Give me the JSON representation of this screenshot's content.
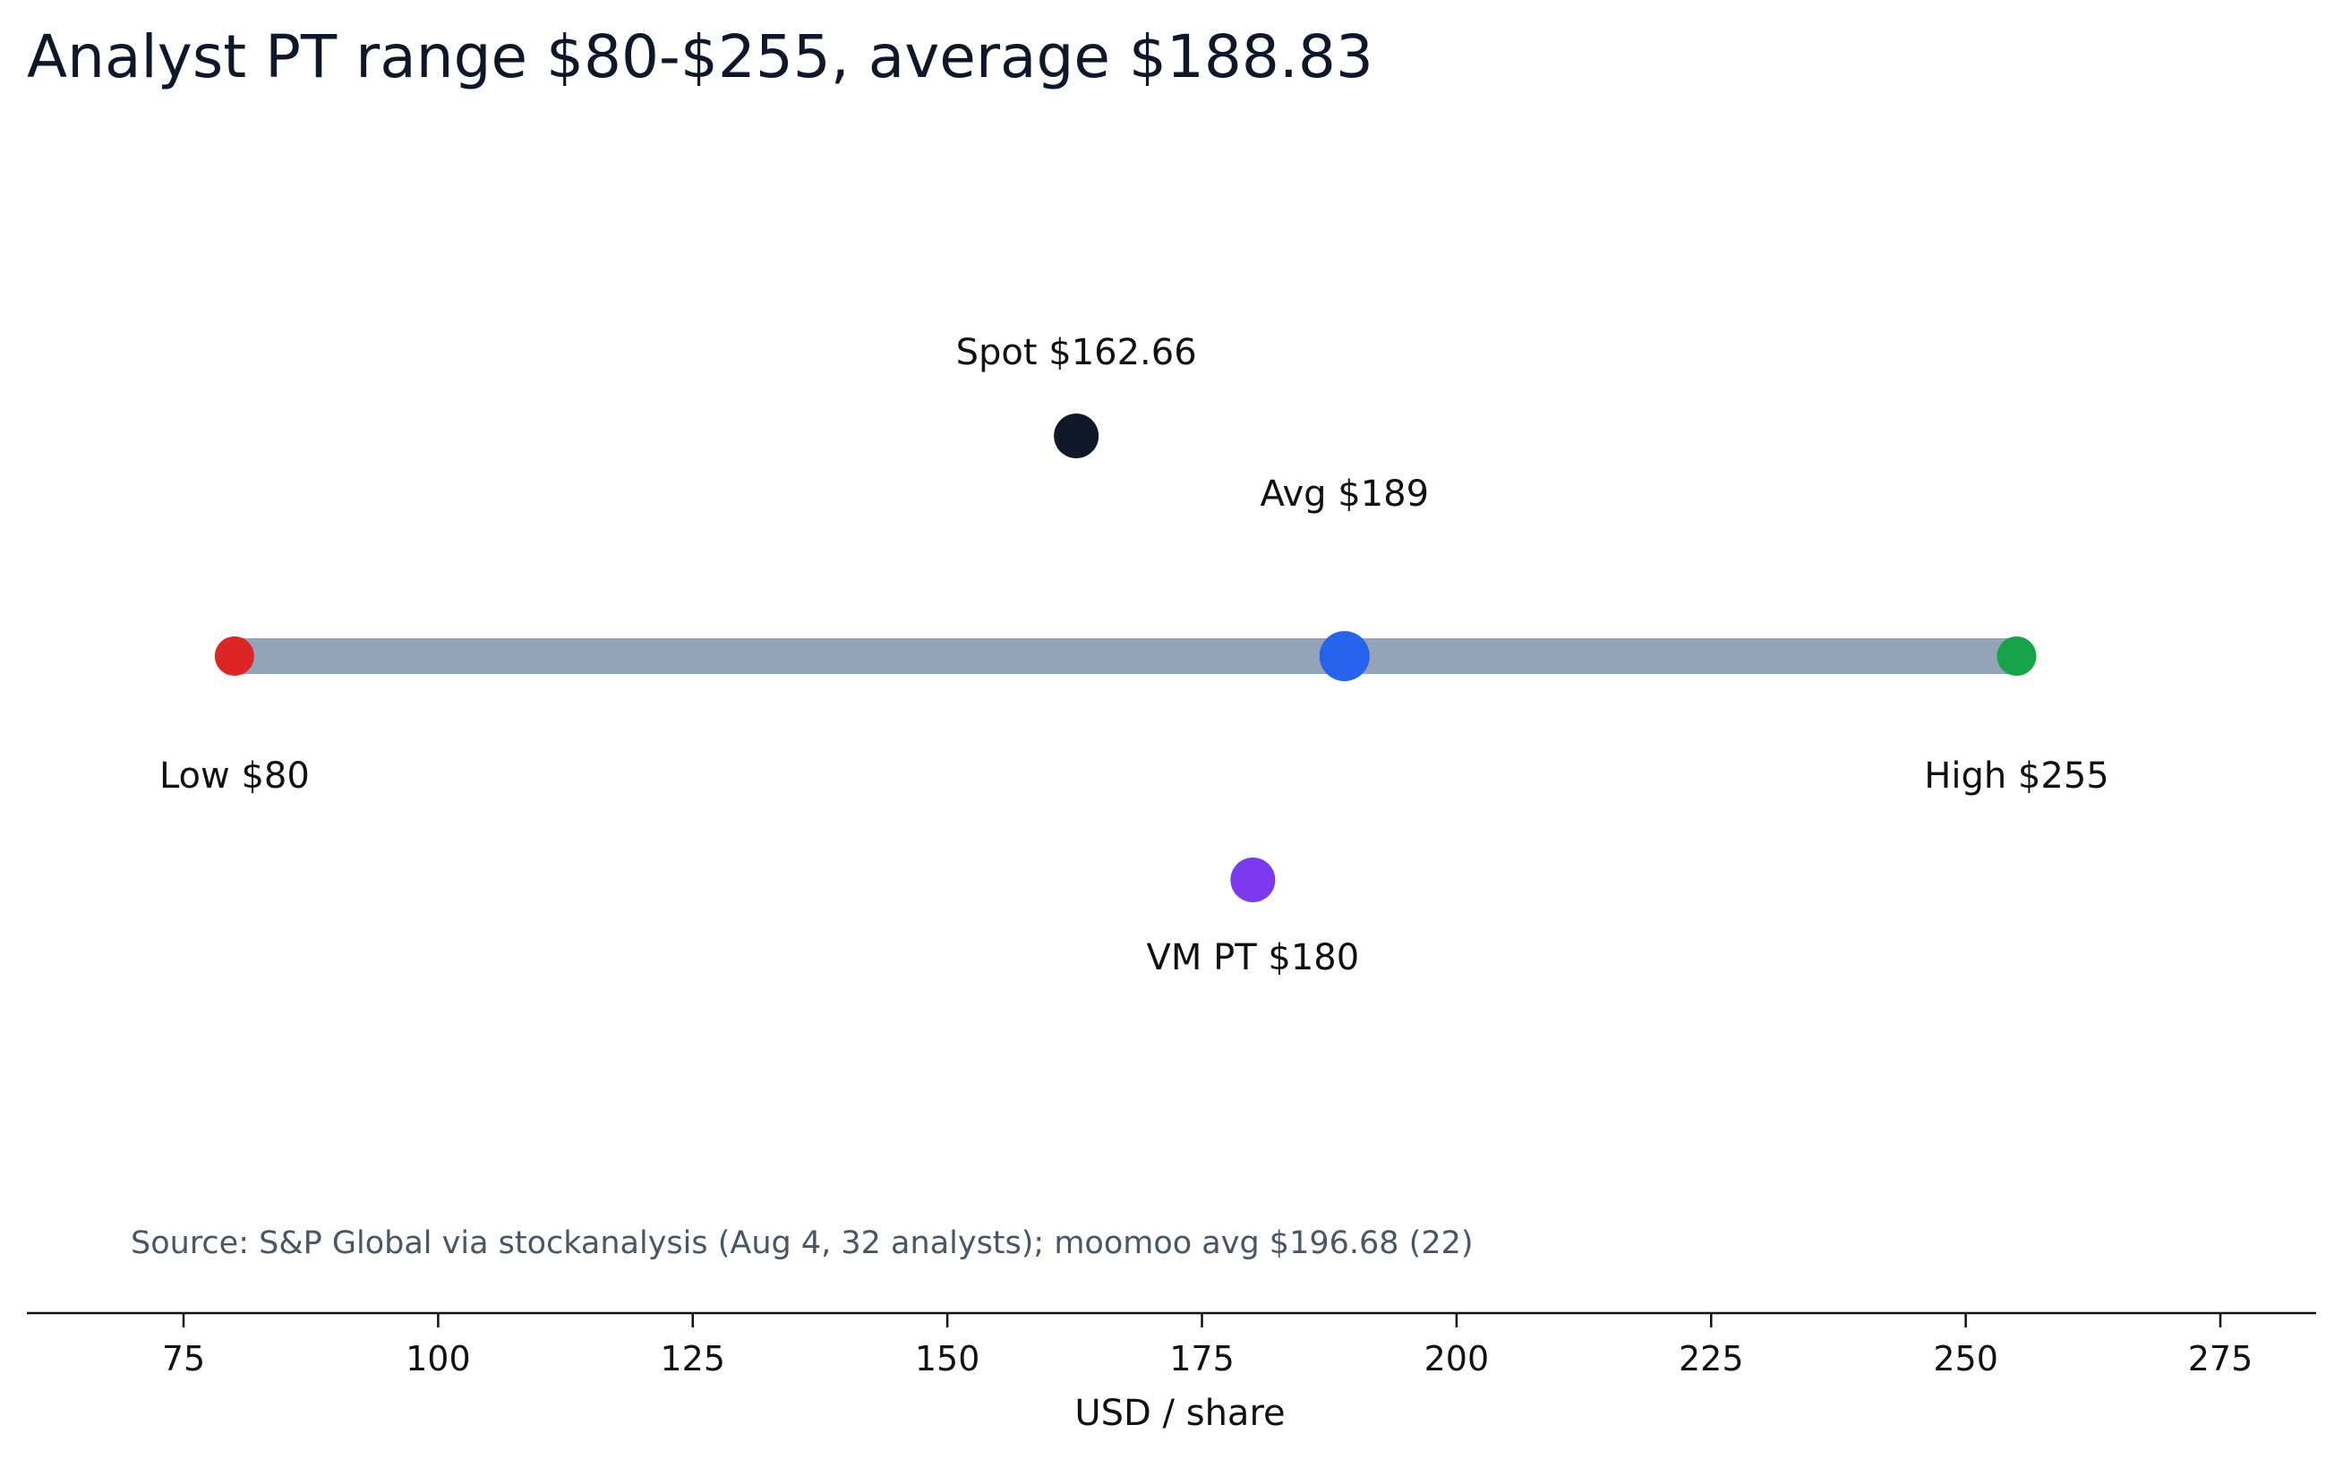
{
  "chart_data": {
    "type": "scatter",
    "title": "Analyst PT range $80-$255, average $188.83",
    "xlabel": "USD / share",
    "ylabel": "",
    "xlim": [
      60,
      280
    ],
    "xticks": [
      75,
      100,
      125,
      150,
      175,
      200,
      225,
      250,
      275
    ],
    "grid": false,
    "legend": "none",
    "range": {
      "low": 80,
      "high": 255,
      "color": "#94a3b8"
    },
    "points": [
      {
        "name": "low",
        "label": "Low $80",
        "value": 80,
        "color": "#dc2626",
        "label_position": "below"
      },
      {
        "name": "high",
        "label": "High $255",
        "value": 255,
        "color": "#16a34a",
        "label_position": "below"
      },
      {
        "name": "avg",
        "label": "Avg $189",
        "value": 189,
        "color": "#2563eb",
        "label_position": "above"
      },
      {
        "name": "spot",
        "label": "Spot $162.66",
        "value": 162.66,
        "color": "#111827",
        "label_position": "above"
      },
      {
        "name": "vm",
        "label": "VM PT $180",
        "value": 180,
        "color": "#7c3aed",
        "label_position": "below"
      }
    ],
    "annotation": "Source: S&P Global via stockanalysis (Aug 4, 32 analysts); moomoo avg $196.68 (22)"
  }
}
